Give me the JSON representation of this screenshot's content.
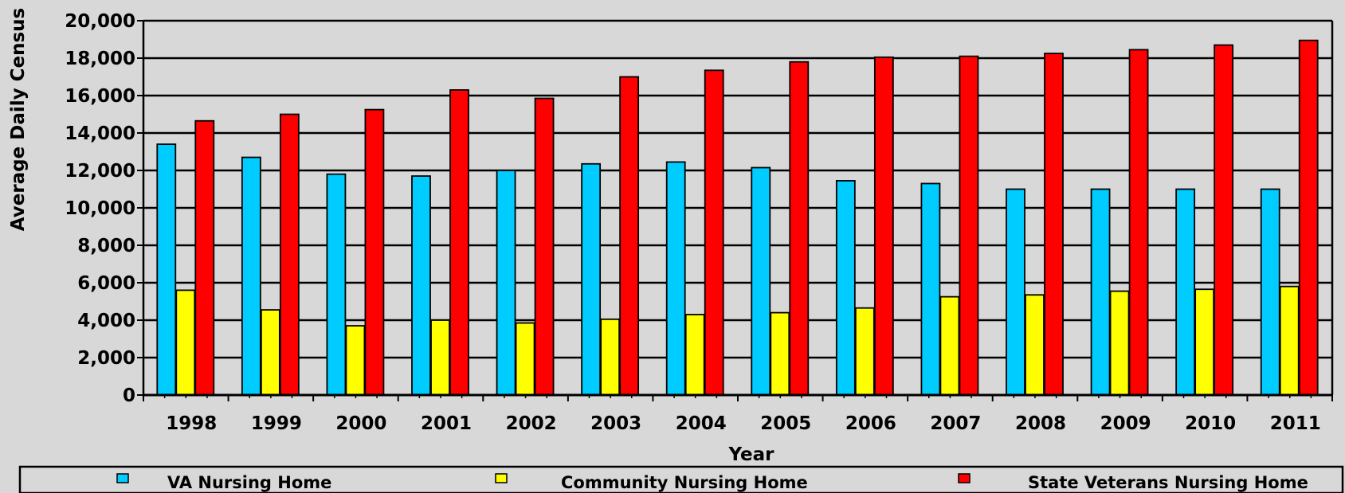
{
  "chart_data": {
    "type": "bar",
    "title": "",
    "xlabel": "Year",
    "ylabel": "Average Daily Census",
    "ylim": [
      0,
      20000
    ],
    "yticks": [
      0,
      2000,
      4000,
      6000,
      8000,
      10000,
      12000,
      14000,
      16000,
      18000,
      20000
    ],
    "ytick_labels": [
      "0",
      "2,000",
      "4,000",
      "6,000",
      "8,000",
      "10,000",
      "12,000",
      "14,000",
      "16,000",
      "18,000",
      "20,000"
    ],
    "grid": true,
    "legend_position": "bottom",
    "categories": [
      "1998",
      "1999",
      "2000",
      "2001",
      "2002",
      "2003",
      "2004",
      "2005",
      "2006",
      "2007",
      "2008",
      "2009",
      "2010",
      "2011"
    ],
    "series": [
      {
        "name": "VA Nursing Home",
        "color": "#00ccff",
        "values": [
          13400,
          12700,
          11800,
          11700,
          12000,
          12350,
          12450,
          12150,
          11450,
          11300,
          11000,
          11000,
          11000,
          11000
        ]
      },
      {
        "name": "Community Nursing Home",
        "color": "#ffff00",
        "values": [
          5600,
          4550,
          3700,
          4000,
          3850,
          4050,
          4300,
          4400,
          4650,
          5250,
          5350,
          5550,
          5650,
          5800
        ]
      },
      {
        "name": "State Veterans Nursing Home",
        "color": "#ff0000",
        "values": [
          14650,
          15000,
          15250,
          16300,
          15850,
          17000,
          17350,
          17800,
          18050,
          18100,
          18250,
          18450,
          18700,
          18950
        ]
      }
    ]
  }
}
